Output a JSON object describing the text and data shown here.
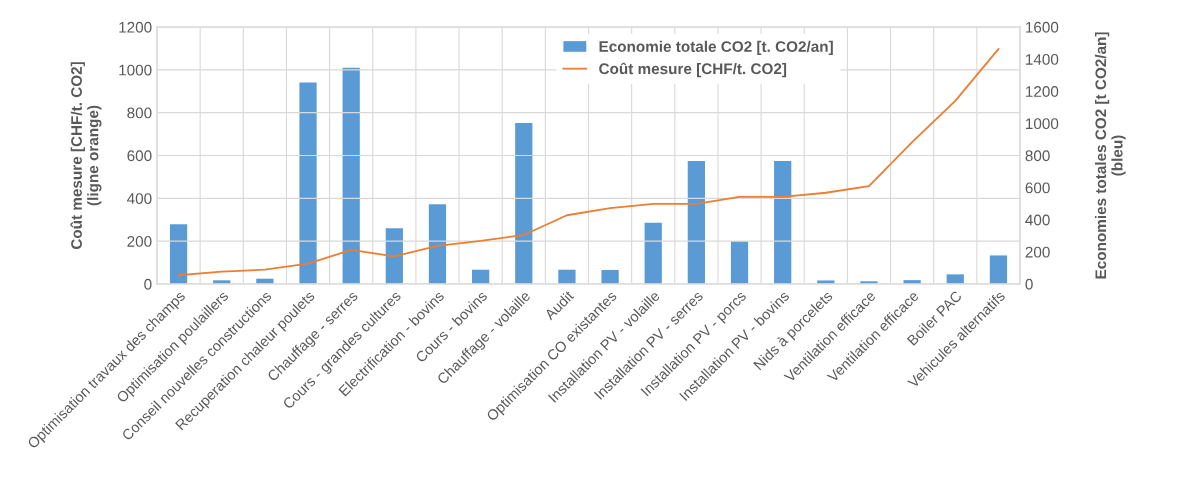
{
  "chart_data": {
    "type": "bar",
    "categories": [
      "Optimisation travaux des champs",
      "Optimisation poulaillers",
      "Conseil nouvelles constructions",
      "Recuperation chaleur poulets",
      "Chauffage - serres",
      "Cours - grandes cultures",
      "Electrification - bovins",
      "Cours - bovins",
      "Chauffage - volaille",
      "Audit",
      "Optimisation CO existantes",
      "Installation PV - volaille",
      "Installation PV - serres",
      "Installation PV - porcs",
      "Installation PV - bovins",
      "Nids à porcelets",
      "Ventilation efficace",
      "Ventilation efficace",
      "Boiler PAC",
      "Vehicules alternatifs"
    ],
    "series": [
      {
        "name": "Economie totale CO2 [t. CO2/an]",
        "axis": "y2",
        "color": "#5b9bd5",
        "values": [
          372,
          23,
          33,
          1254,
          1346,
          347,
          497,
          89,
          1003,
          89,
          87,
          381,
          765,
          266,
          765,
          22,
          17,
          24,
          60,
          178
        ]
      },
      {
        "name": "Coût mesure [CHF/t. CO2]",
        "type": "line",
        "axis": "y",
        "color": "#ed7d31",
        "values": [
          41,
          58,
          67,
          95,
          159,
          129,
          178,
          201,
          229,
          321,
          354,
          374,
          374,
          407,
          407,
          426,
          457,
          662,
          855,
          1097
        ]
      }
    ],
    "ylabel": "Coût mesure [CHF/t. CO2]\n(ligne orange)",
    "y2label": "Economies totales CO2 [t CO2/an]\n(bleu)",
    "ylim": [
      0,
      1200
    ],
    "yticks": [
      0,
      200,
      400,
      600,
      800,
      1000,
      1200
    ],
    "y2lim": [
      0,
      1600
    ],
    "y2ticks": [
      0,
      200,
      400,
      600,
      800,
      1000,
      1200,
      1400,
      1600
    ],
    "grid": true,
    "legend": "top right",
    "marker": "none",
    "line_style": "solid"
  }
}
